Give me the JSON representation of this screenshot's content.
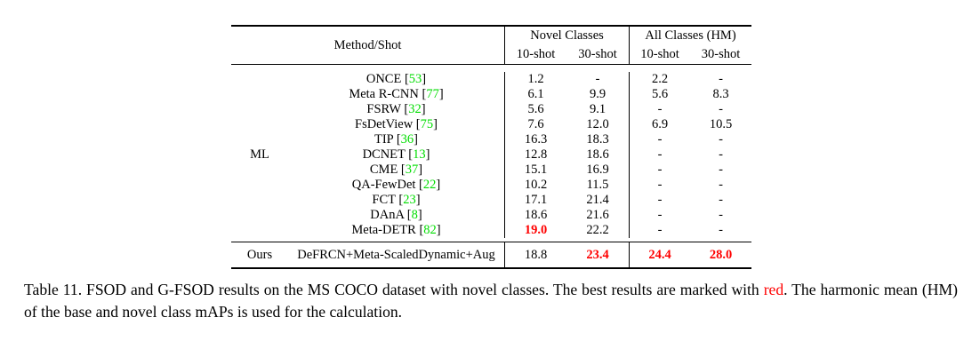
{
  "table": {
    "header": {
      "method_shot": "Method/Shot",
      "novel_group": "Novel Classes",
      "all_group": "All Classes (HM)",
      "subcols": [
        "10-shot",
        "30-shot",
        "10-shot",
        "30-shot"
      ]
    },
    "rows": [
      {
        "group": "",
        "method": "ONCE",
        "cite": "53",
        "n10": "1.2",
        "n30": "-",
        "a10": "2.2",
        "a30": "-",
        "best": []
      },
      {
        "group": "",
        "method": "Meta R-CNN",
        "cite": "77",
        "n10": "6.1",
        "n30": "9.9",
        "a10": "5.6",
        "a30": "8.3",
        "best": []
      },
      {
        "group": "",
        "method": "FSRW",
        "cite": "32",
        "n10": "5.6",
        "n30": "9.1",
        "a10": "-",
        "a30": "-",
        "best": []
      },
      {
        "group": "",
        "method": "FsDetView",
        "cite": "75",
        "n10": "7.6",
        "n30": "12.0",
        "a10": "6.9",
        "a30": "10.5",
        "best": []
      },
      {
        "group": "",
        "method": "TIP",
        "cite": "36",
        "n10": "16.3",
        "n30": "18.3",
        "a10": "-",
        "a30": "-",
        "best": []
      },
      {
        "group": "ML",
        "method": "DCNET",
        "cite": "13",
        "n10": "12.8",
        "n30": "18.6",
        "a10": "-",
        "a30": "-",
        "best": []
      },
      {
        "group": "",
        "method": "CME",
        "cite": "37",
        "n10": "15.1",
        "n30": "16.9",
        "a10": "-",
        "a30": "-",
        "best": []
      },
      {
        "group": "",
        "method": "QA-FewDet",
        "cite": "22",
        "n10": "10.2",
        "n30": "11.5",
        "a10": "-",
        "a30": "-",
        "best": []
      },
      {
        "group": "",
        "method": "FCT",
        "cite": "23",
        "n10": "17.1",
        "n30": "21.4",
        "a10": "-",
        "a30": "-",
        "best": []
      },
      {
        "group": "",
        "method": "DAnA",
        "cite": "8",
        "n10": "18.6",
        "n30": "21.6",
        "a10": "-",
        "a30": "-",
        "best": []
      },
      {
        "group": "",
        "method": "Meta-DETR",
        "cite": "82",
        "n10": "19.0",
        "n30": "22.2",
        "a10": "-",
        "a30": "-",
        "best": [
          "n10"
        ]
      }
    ],
    "ours": {
      "group": "Ours",
      "method": "DeFRCN+Meta-ScaledDynamic+Aug",
      "n10": "18.8",
      "n30": "23.4",
      "a10": "24.4",
      "a30": "28.0"
    }
  },
  "caption": {
    "part1": "Table 11. FSOD and G-FSOD results on the MS COCO dataset with novel classes. The best results are marked with ",
    "red_word": "red",
    "part2": ". The harmonic mean (HM) of the base and novel class mAPs is used for the calculation."
  },
  "colors": {
    "citation_green": "#00DD00",
    "best_red": "#FF0000"
  }
}
